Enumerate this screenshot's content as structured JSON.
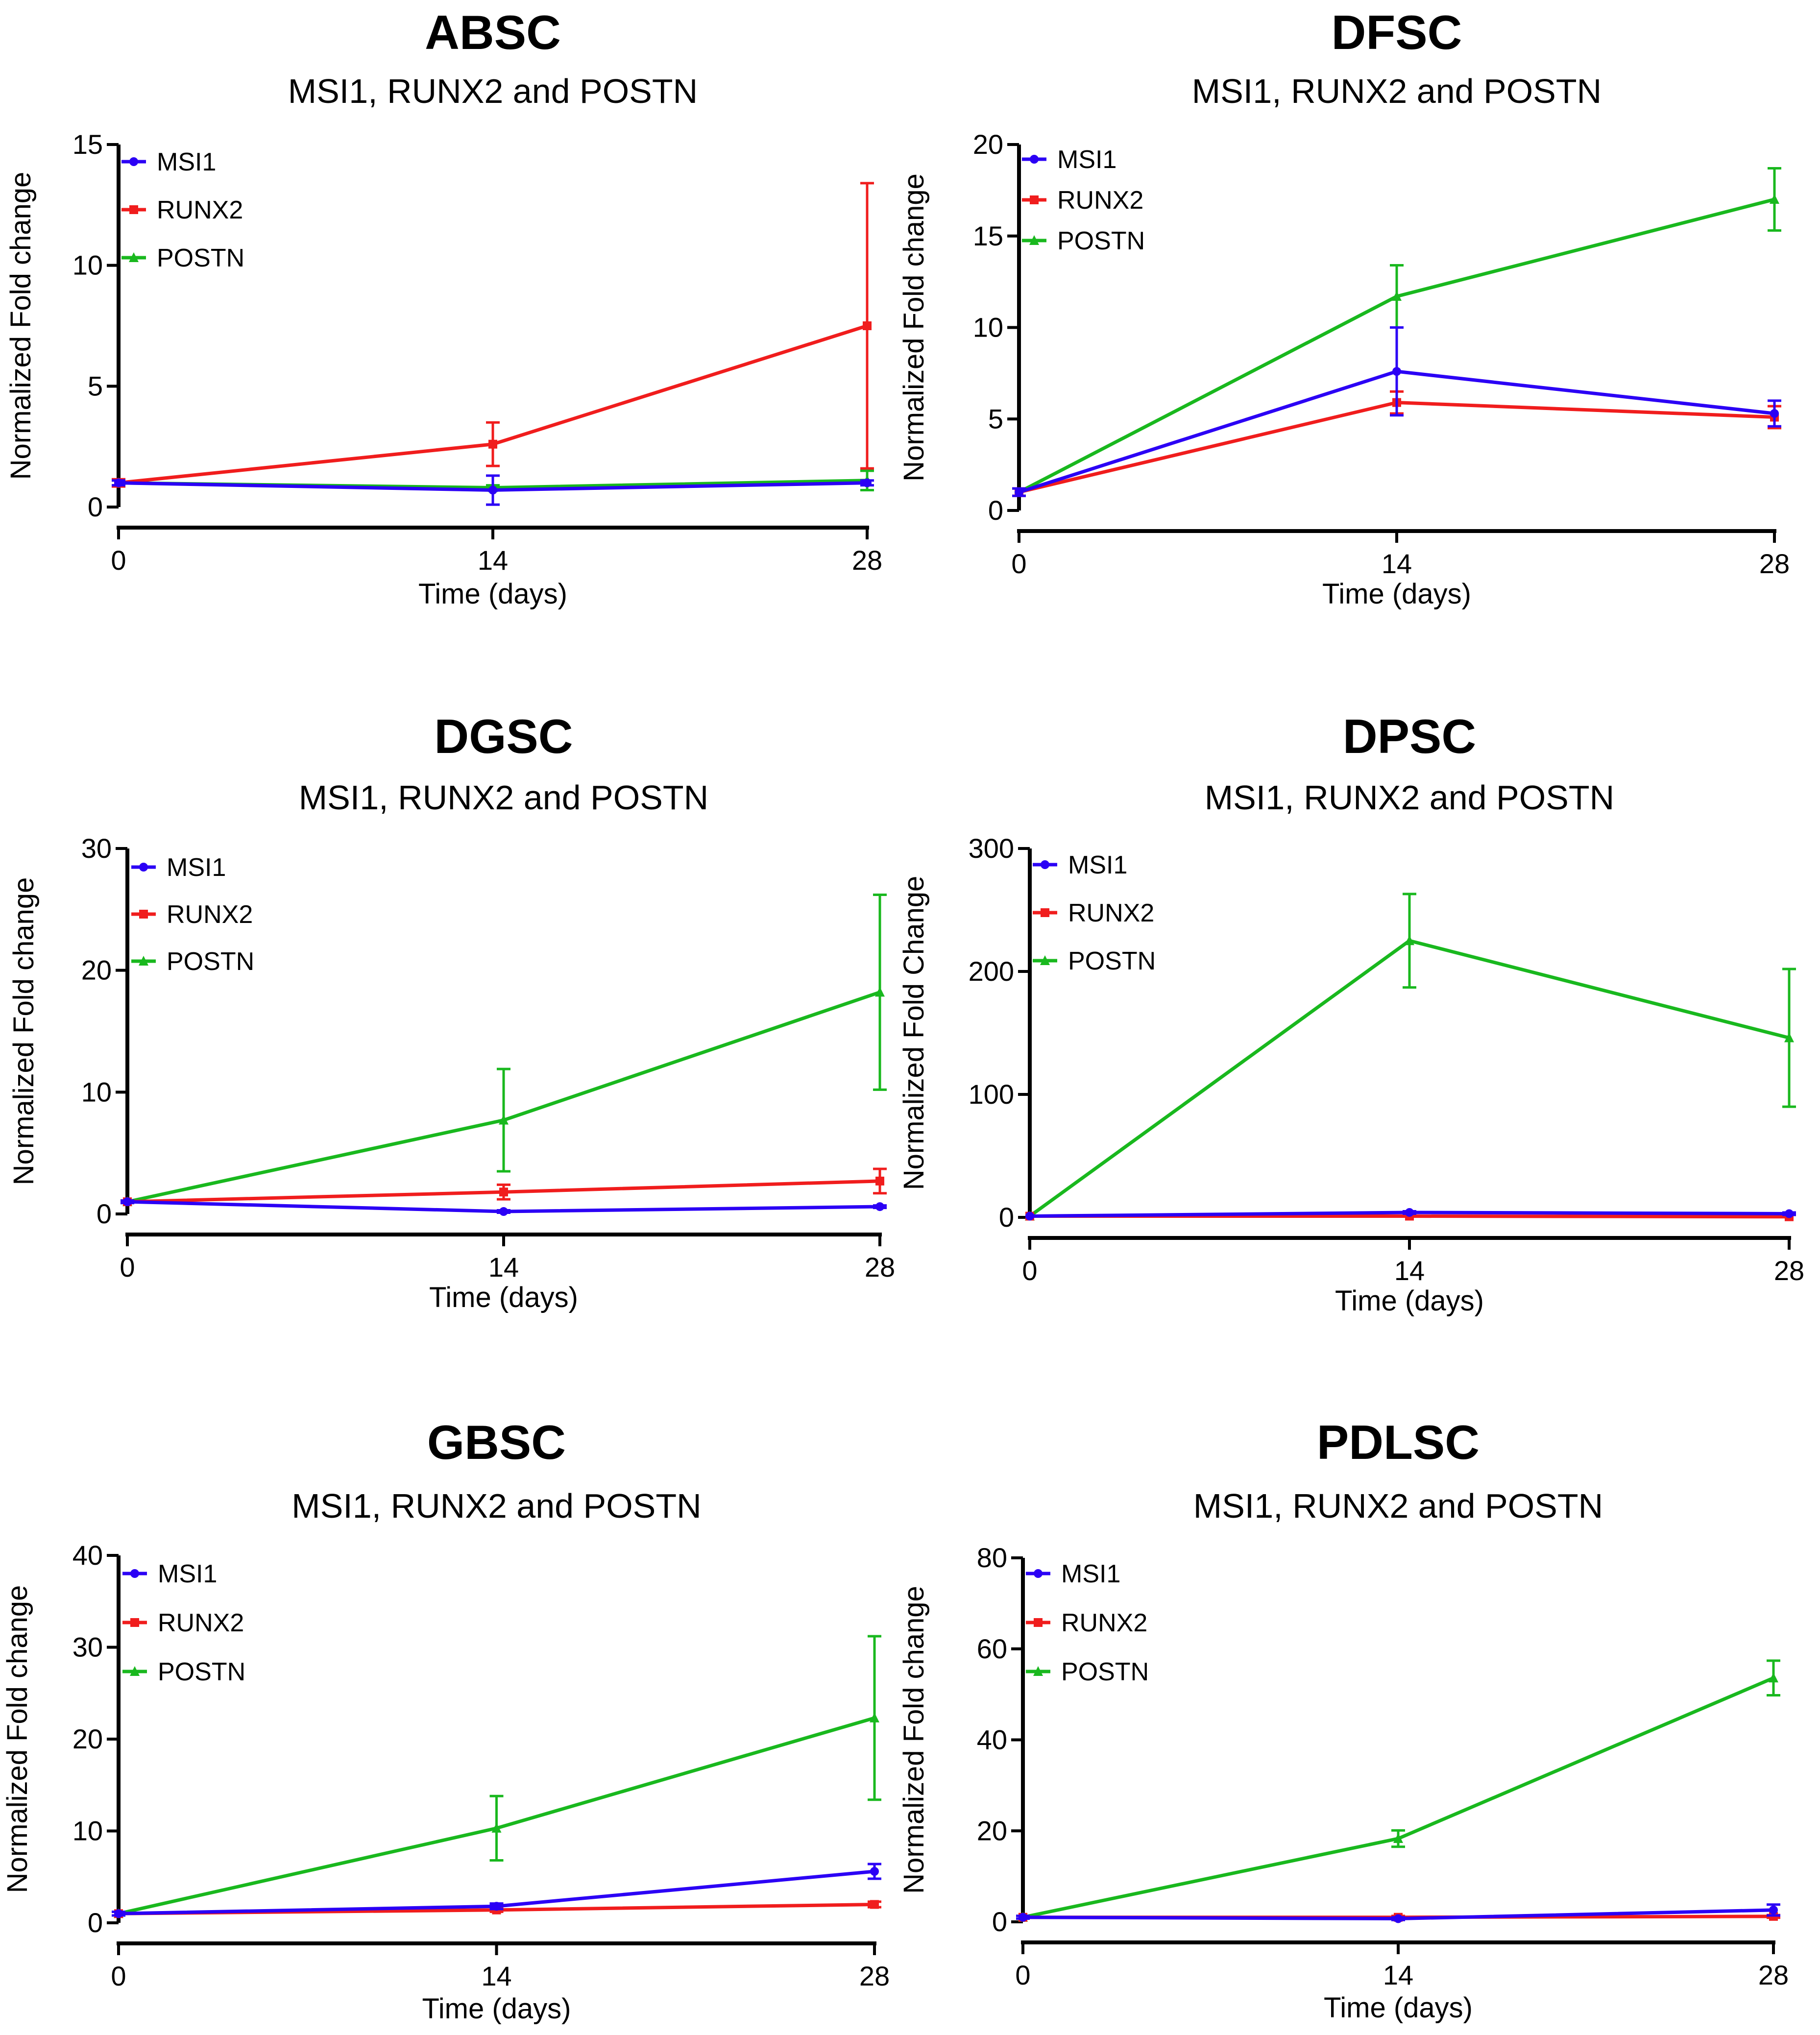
{
  "chart_data": [
    {
      "type": "line",
      "title": "ABSC",
      "subtitle": "MSI1, RUNX2 and POSTN",
      "xlabel": "Time (days)",
      "ylabel": "Normalized Fold change",
      "x": [
        0,
        14,
        28
      ],
      "xticks": [
        "0",
        "14",
        "28"
      ],
      "ylim": [
        0,
        15
      ],
      "yticks": [
        0,
        5,
        10,
        15
      ],
      "legend_position": "top-left",
      "series": [
        {
          "name": "MSI1",
          "color": "#2b00f5",
          "marker": "circle",
          "values": [
            1.0,
            0.7,
            1.0
          ],
          "errors": [
            0.1,
            0.6,
            0.1
          ]
        },
        {
          "name": "RUNX2",
          "color": "#f01d1d",
          "marker": "square",
          "values": [
            1.0,
            2.6,
            7.5
          ],
          "errors": [
            0.15,
            0.9,
            5.9
          ]
        },
        {
          "name": "POSTN",
          "color": "#19b81e",
          "marker": "triangle",
          "values": [
            1.0,
            0.8,
            1.1
          ],
          "errors": [
            0.1,
            0.1,
            0.4
          ]
        }
      ]
    },
    {
      "type": "line",
      "title": "DFSC",
      "subtitle": "MSI1, RUNX2 and POSTN",
      "xlabel": "Time (days)",
      "ylabel": "Normalized Fold change",
      "x": [
        0,
        14,
        28
      ],
      "xticks": [
        "0",
        "14",
        "28"
      ],
      "ylim": [
        0,
        20
      ],
      "yticks": [
        0,
        5,
        10,
        15,
        20
      ],
      "legend_position": "top-left",
      "series": [
        {
          "name": "MSI1",
          "color": "#2b00f5",
          "marker": "circle",
          "values": [
            1.0,
            7.6,
            5.3
          ],
          "errors": [
            0.2,
            2.4,
            0.7
          ]
        },
        {
          "name": "RUNX2",
          "color": "#f01d1d",
          "marker": "square",
          "values": [
            1.0,
            5.9,
            5.1
          ],
          "errors": [
            0.2,
            0.6,
            0.6
          ]
        },
        {
          "name": "POSTN",
          "color": "#19b81e",
          "marker": "triangle",
          "values": [
            1.0,
            11.7,
            17.0
          ],
          "errors": [
            0.2,
            1.7,
            1.7
          ]
        }
      ]
    },
    {
      "type": "line",
      "title": "DGSC",
      "subtitle": "MSI1, RUNX2 and POSTN",
      "xlabel": "Time (days)",
      "ylabel": "Normalized Fold change",
      "x": [
        0,
        14,
        28
      ],
      "xticks": [
        "0",
        "14",
        "28"
      ],
      "ylim": [
        0,
        30
      ],
      "yticks": [
        0,
        10,
        20,
        30
      ],
      "legend_position": "top-left",
      "series": [
        {
          "name": "MSI1",
          "color": "#2b00f5",
          "marker": "circle",
          "values": [
            1.0,
            0.2,
            0.6
          ],
          "errors": [
            0.1,
            0.1,
            0.1
          ]
        },
        {
          "name": "RUNX2",
          "color": "#f01d1d",
          "marker": "square",
          "values": [
            1.0,
            1.8,
            2.7
          ],
          "errors": [
            0.1,
            0.6,
            1.0
          ]
        },
        {
          "name": "POSTN",
          "color": "#19b81e",
          "marker": "triangle",
          "values": [
            1.0,
            7.7,
            18.2
          ],
          "errors": [
            0.1,
            4.2,
            8.0
          ]
        }
      ]
    },
    {
      "type": "line",
      "title": "DPSC",
      "subtitle": "MSI1, RUNX2 and POSTN",
      "xlabel": "Time (days)",
      "ylabel": "Normalized Fold Change",
      "x": [
        0,
        14,
        28
      ],
      "xticks": [
        "0",
        "14",
        "28"
      ],
      "ylim": [
        0,
        300
      ],
      "yticks": [
        0,
        100,
        200,
        300
      ],
      "legend_position": "top-left",
      "series": [
        {
          "name": "MSI1",
          "color": "#2b00f5",
          "marker": "circle",
          "values": [
            1.0,
            4.0,
            3.0
          ],
          "errors": [
            0.5,
            1.0,
            1.0
          ]
        },
        {
          "name": "RUNX2",
          "color": "#f01d1d",
          "marker": "square",
          "values": [
            1.0,
            1.0,
            0.5
          ],
          "errors": [
            0.5,
            0.5,
            0.5
          ]
        },
        {
          "name": "POSTN",
          "color": "#19b81e",
          "marker": "triangle",
          "values": [
            1.0,
            225,
            146
          ],
          "errors": [
            0.5,
            38,
            56
          ]
        }
      ]
    },
    {
      "type": "line",
      "title": "GBSC",
      "subtitle": "MSI1, RUNX2 and POSTN",
      "xlabel": "Time (days)",
      "ylabel": "Normalized Fold change",
      "x": [
        0,
        14,
        28
      ],
      "xticks": [
        "0",
        "14",
        "28"
      ],
      "ylim": [
        0,
        40
      ],
      "yticks": [
        0,
        10,
        20,
        30,
        40
      ],
      "legend_position": "top-left",
      "series": [
        {
          "name": "MSI1",
          "color": "#2b00f5",
          "marker": "circle",
          "values": [
            1.0,
            1.8,
            5.6
          ],
          "errors": [
            0.2,
            0.3,
            0.8
          ]
        },
        {
          "name": "RUNX2",
          "color": "#f01d1d",
          "marker": "square",
          "values": [
            1.0,
            1.4,
            2.0
          ],
          "errors": [
            0.2,
            0.2,
            0.3
          ]
        },
        {
          "name": "POSTN",
          "color": "#19b81e",
          "marker": "triangle",
          "values": [
            1.0,
            10.3,
            22.3
          ],
          "errors": [
            0.2,
            3.5,
            8.9
          ]
        }
      ]
    },
    {
      "type": "line",
      "title": "PDLSC",
      "subtitle": "MSI1, RUNX2 and POSTN",
      "xlabel": "Time (days)",
      "ylabel": "Normalized Fold change",
      "x": [
        0,
        14,
        28
      ],
      "xticks": [
        "0",
        "14",
        "28"
      ],
      "ylim": [
        0,
        80
      ],
      "yticks": [
        0,
        20,
        40,
        60,
        80
      ],
      "legend_position": "top-left",
      "series": [
        {
          "name": "MSI1",
          "color": "#2b00f5",
          "marker": "circle",
          "values": [
            1.0,
            0.7,
            2.6
          ],
          "errors": [
            0.3,
            0.3,
            1.2
          ]
        },
        {
          "name": "RUNX2",
          "color": "#f01d1d",
          "marker": "square",
          "values": [
            1.0,
            1.0,
            1.2
          ],
          "errors": [
            0.3,
            0.3,
            0.3
          ]
        },
        {
          "name": "POSTN",
          "color": "#19b81e",
          "marker": "triangle",
          "values": [
            1.0,
            18.3,
            53.6
          ],
          "errors": [
            0.3,
            1.8,
            3.8
          ]
        }
      ]
    }
  ]
}
